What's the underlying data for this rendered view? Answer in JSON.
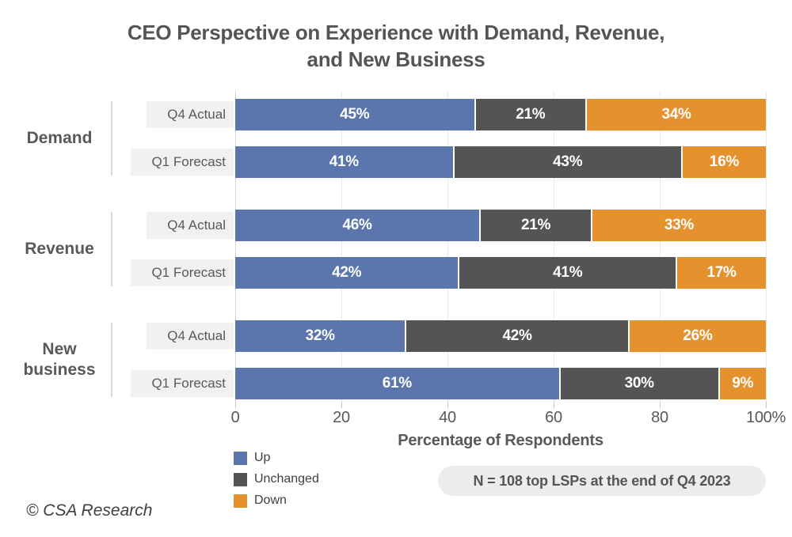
{
  "title": {
    "text": "CEO Perspective on Experience with Demand, Revenue,\nand New Business"
  },
  "chart_data": {
    "type": "bar",
    "orientation": "horizontal",
    "stacked": true,
    "title": "CEO Perspective on Experience with Demand, Revenue, and New Business",
    "xlabel": "Percentage of Respondents",
    "xlim": [
      0,
      100
    ],
    "xticks": [
      "0",
      "20",
      "40",
      "60",
      "80",
      "100%"
    ],
    "grid": true,
    "value_suffix": "%",
    "series": [
      "Up",
      "Unchanged",
      "Down"
    ],
    "colors": {
      "Up": "#5b76ad",
      "Unchanged": "#545454",
      "Down": "#e5912d"
    },
    "groups": [
      {
        "label": "Demand",
        "rows": [
          {
            "label": "Q4 Actual",
            "values": [
              45,
              21,
              34
            ]
          },
          {
            "label": "Q1 Forecast",
            "values": [
              41,
              43,
              16
            ]
          }
        ]
      },
      {
        "label": "Revenue",
        "rows": [
          {
            "label": "Q4 Actual",
            "values": [
              46,
              21,
              33
            ]
          },
          {
            "label": "Q1 Forecast",
            "values": [
              42,
              41,
              17
            ]
          }
        ]
      },
      {
        "label": "New business",
        "rows": [
          {
            "label": "Q4 Actual",
            "values": [
              32,
              42,
              26
            ]
          },
          {
            "label": "Q1 Forecast",
            "values": [
              61,
              30,
              9
            ]
          }
        ]
      }
    ],
    "legend_position": "bottom-left"
  },
  "legend": {
    "items": [
      {
        "label": "Up",
        "color": "#5b76ad"
      },
      {
        "label": "Unchanged",
        "color": "#545454"
      },
      {
        "label": "Down",
        "color": "#e5912d"
      }
    ]
  },
  "note": {
    "text": "N = 108 top LSPs at the end of Q4 2023"
  },
  "footer": {
    "text": "© CSA Research"
  }
}
